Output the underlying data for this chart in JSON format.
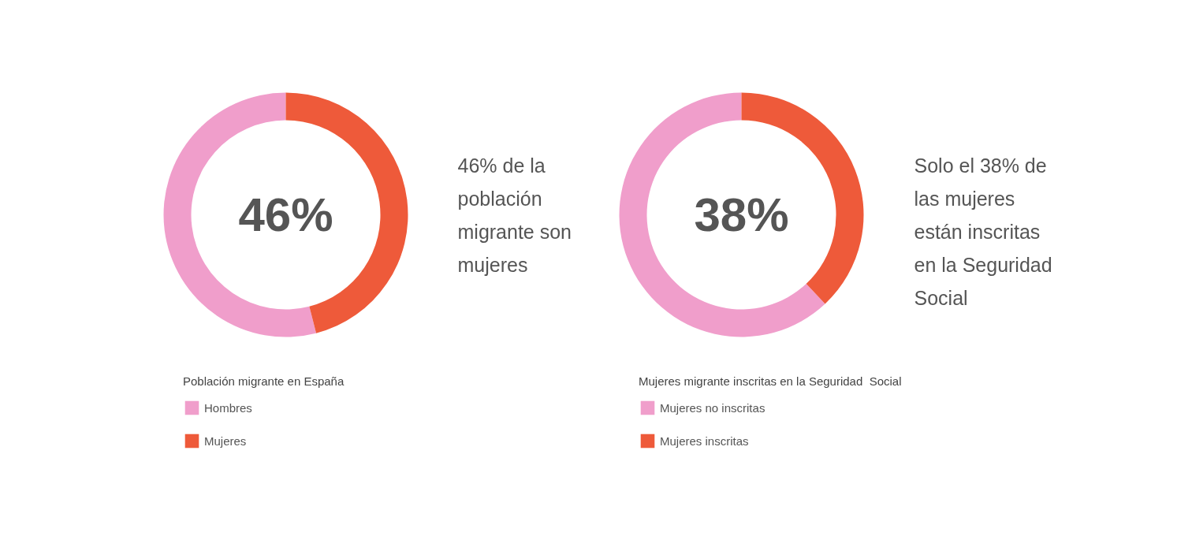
{
  "chart_data": [
    {
      "type": "donut",
      "legend_title": "Población migrante en España",
      "categories": [
        "Hombres",
        "Mujeres"
      ],
      "values": [
        54,
        46
      ],
      "colors": [
        "#f09ecb",
        "#ee5a3a"
      ],
      "legend": "bottom",
      "annotations": [
        "46%",
        "46% de la población migrante son mujeres"
      ]
    },
    {
      "type": "donut",
      "legend_title": "Mujeres migrante inscritas en la Seguridad  Social",
      "categories": [
        "Mujeres no inscritas",
        "Mujeres inscritas"
      ],
      "values": [
        62,
        38
      ],
      "colors": [
        "#f09ecb",
        "#ee5a3a"
      ],
      "legend": "bottom",
      "annotations": [
        "38%",
        "Solo el 38% de las mujeres están inscritas en la Seguridad Social"
      ]
    }
  ]
}
